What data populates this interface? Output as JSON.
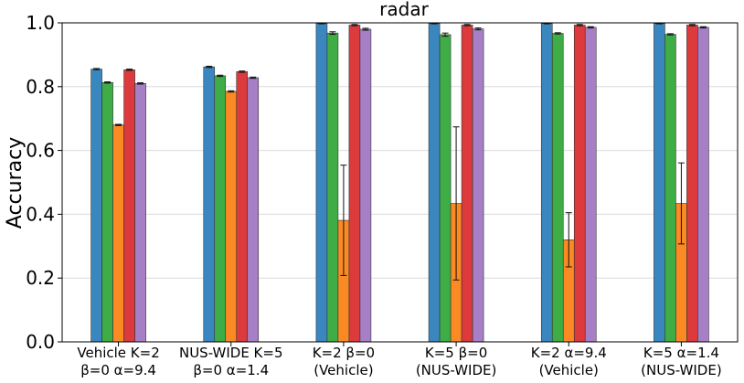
{
  "chart_data": {
    "type": "bar",
    "title": "radar",
    "ylabel": "Accuracy",
    "xlabel": "",
    "ylim": [
      0,
      1.0
    ],
    "yticks": [
      "0.0",
      "0.2",
      "0.4",
      "0.6",
      "0.8",
      "1.0"
    ],
    "grid": "horizontal",
    "categories": [
      [
        "Vehicle K=2",
        "β=0 α=9.4"
      ],
      [
        "NUS-WIDE K=5",
        "β=0 α=1.4"
      ],
      [
        "K=2 β=0",
        "(Vehicle)"
      ],
      [
        "K=5 β=0",
        "(NUS-WIDE)"
      ],
      [
        "K=2 α=9.4",
        "(Vehicle)"
      ],
      [
        "K=5 α=1.4",
        "(NUS-WIDE)"
      ]
    ],
    "series": [
      {
        "color": "#3a87c0",
        "values": [
          0.855,
          0.862,
          0.998,
          0.998,
          0.998,
          0.998
        ],
        "errors": [
          0.002,
          0.002,
          0.001,
          0.001,
          0.001,
          0.001
        ]
      },
      {
        "color": "#3fad46",
        "values": [
          0.813,
          0.834,
          0.968,
          0.963,
          0.967,
          0.964
        ],
        "errors": [
          0.002,
          0.002,
          0.004,
          0.005,
          0.002,
          0.002
        ]
      },
      {
        "color": "#fb8a24",
        "values": [
          0.68,
          0.785,
          0.381,
          0.434,
          0.32,
          0.434
        ],
        "errors": [
          0.002,
          0.002,
          0.173,
          0.24,
          0.085,
          0.127
        ]
      },
      {
        "color": "#dc3a3c",
        "values": [
          0.853,
          0.847,
          0.993,
          0.993,
          0.993,
          0.993
        ],
        "errors": [
          0.002,
          0.002,
          0.002,
          0.002,
          0.002,
          0.002
        ]
      },
      {
        "color": "#a67fc7",
        "values": [
          0.81,
          0.828,
          0.98,
          0.981,
          0.986,
          0.986
        ],
        "errors": [
          0.002,
          0.002,
          0.003,
          0.003,
          0.002,
          0.002
        ]
      }
    ]
  }
}
